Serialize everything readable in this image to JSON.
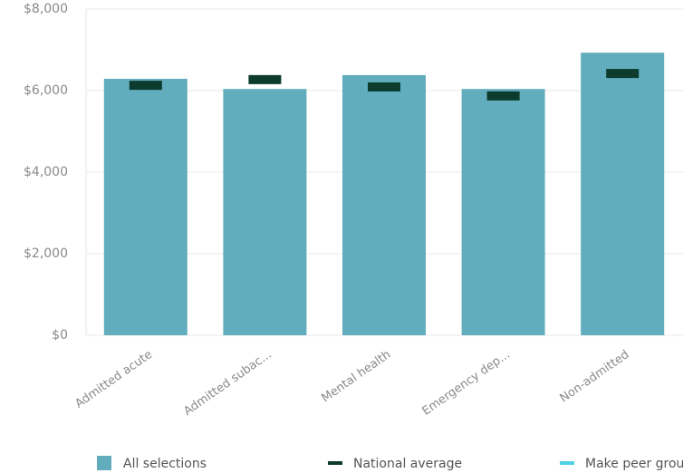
{
  "chart_data": {
    "type": "bar",
    "categories": [
      "Admitted acute",
      "Admitted subac...",
      "Mental health",
      "Emergency dep...",
      "Non-admitted"
    ],
    "series": [
      {
        "name": "All selections",
        "color": "#61adbd",
        "values": [
          6290,
          6040,
          6380,
          6040,
          6930
        ]
      },
      {
        "name": "National average",
        "color": "#0d3b2e",
        "values": [
          6130,
          6270,
          6090,
          5870,
          6420
        ]
      },
      {
        "name": "Make peer group",
        "color": "#4fd1e3",
        "values": [
          null,
          null,
          null,
          null,
          null
        ]
      }
    ],
    "ylim": [
      0,
      8000
    ],
    "yticks": [
      {
        "value": 0,
        "label": "$0"
      },
      {
        "value": 2000,
        "label": "$2,000"
      },
      {
        "value": 4000,
        "label": "$4,000"
      },
      {
        "value": 6000,
        "label": "$6,000"
      },
      {
        "value": 8000,
        "label": "$8,000"
      }
    ],
    "grid": true
  }
}
